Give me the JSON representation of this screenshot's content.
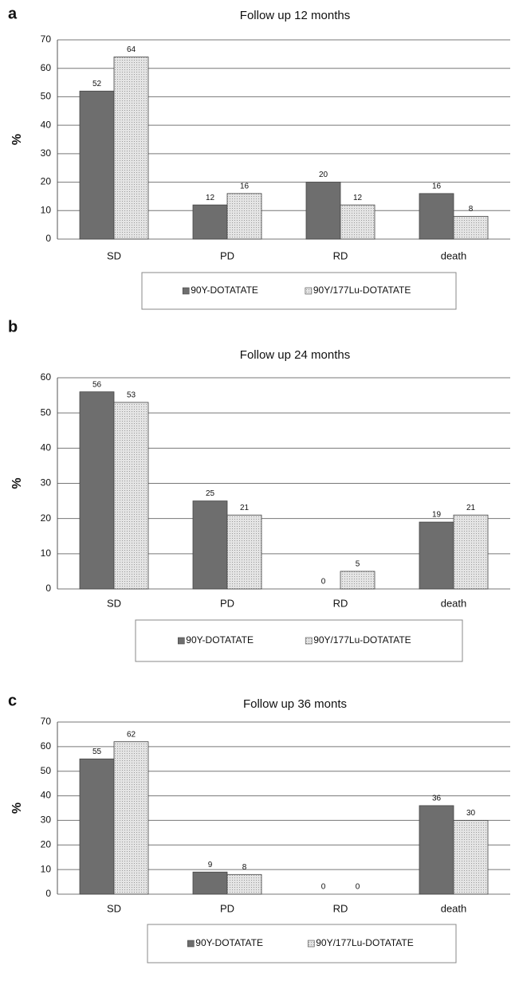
{
  "chart_data": [
    {
      "type": "bar",
      "panel_label": "a",
      "title": "Follow up 12 months",
      "y_label": "%",
      "categories": [
        "SD",
        "PD",
        "RD",
        "death"
      ],
      "series": [
        {
          "name": "90Y-DOTATATE",
          "color": "#6e6e6e",
          "values": [
            52,
            12,
            20,
            16
          ]
        },
        {
          "name": "90Y/177Lu-DOTATATE",
          "color": "#dadada",
          "values": [
            64,
            16,
            12,
            8
          ]
        }
      ],
      "ylim": [
        0,
        70
      ],
      "yticks": [
        0,
        10,
        20,
        30,
        40,
        50,
        60,
        70
      ],
      "grid": true
    },
    {
      "type": "bar",
      "panel_label": "b",
      "title": "Follow up 24 months",
      "y_label": "%",
      "categories": [
        "SD",
        "PD",
        "RD",
        "death"
      ],
      "series": [
        {
          "name": "90Y-DOTATATE",
          "color": "#6e6e6e",
          "values": [
            56,
            25,
            0,
            19
          ]
        },
        {
          "name": "90Y/177Lu-DOTATATE",
          "color": "#dadada",
          "values": [
            53,
            21,
            5,
            21
          ]
        }
      ],
      "ylim": [
        0,
        60
      ],
      "yticks": [
        0,
        10,
        20,
        30,
        40,
        50,
        60
      ],
      "grid": true
    },
    {
      "type": "bar",
      "panel_label": "c",
      "title": "Follow up 36 monts",
      "y_label": "%",
      "categories": [
        "SD",
        "PD",
        "RD",
        "death"
      ],
      "series": [
        {
          "name": "90Y-DOTATATE",
          "color": "#6e6e6e",
          "values": [
            55,
            9,
            0,
            36
          ]
        },
        {
          "name": "90Y/177Lu-DOTATATE",
          "color": "#dadada",
          "values": [
            62,
            8,
            0,
            30
          ]
        }
      ],
      "ylim": [
        0,
        70
      ],
      "yticks": [
        0,
        10,
        20,
        30,
        40,
        50,
        60,
        70
      ],
      "grid": true
    }
  ]
}
